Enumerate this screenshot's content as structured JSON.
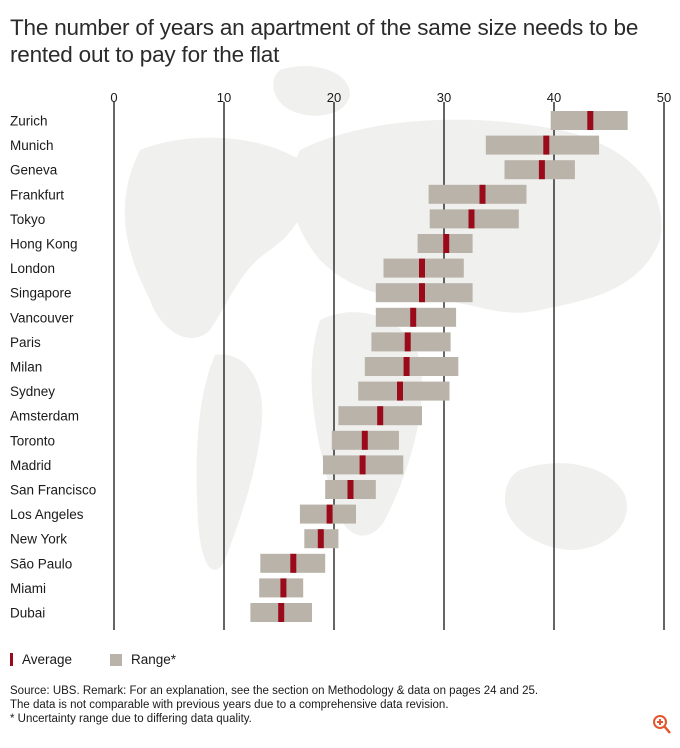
{
  "title": "The number of years an apartment of the same size needs to be rented out to pay for the flat",
  "chart_data": {
    "type": "range-dot",
    "title": "The number of years an apartment of the same size needs to be rented out to pay for the flat",
    "xlim": [
      0,
      50
    ],
    "xticks": [
      0,
      10,
      20,
      30,
      40,
      50
    ],
    "categories": [
      "Zurich",
      "Munich",
      "Geneva",
      "Frankfurt",
      "Tokyo",
      "Hong Kong",
      "London",
      "Singapore",
      "Vancouver",
      "Paris",
      "Milan",
      "Sydney",
      "Amsterdam",
      "Toronto",
      "Madrid",
      "San Francisco",
      "Los Angeles",
      "New York",
      "São Paulo",
      "Miami",
      "Dubai"
    ],
    "series": [
      {
        "name": "Range*",
        "low": [
          39.7,
          33.8,
          35.5,
          28.6,
          28.7,
          27.6,
          24.5,
          23.8,
          23.8,
          23.4,
          22.8,
          22.2,
          20.4,
          19.8,
          19.0,
          19.2,
          16.9,
          17.3,
          13.3,
          13.2,
          12.4
        ],
        "high": [
          46.7,
          44.1,
          41.9,
          37.5,
          36.8,
          32.6,
          31.8,
          32.6,
          31.1,
          30.6,
          31.3,
          30.5,
          28.0,
          25.9,
          26.3,
          23.8,
          22.0,
          20.4,
          19.2,
          17.2,
          18.0
        ]
      },
      {
        "name": "Average",
        "values": [
          43.3,
          39.3,
          38.9,
          33.5,
          32.5,
          30.2,
          28.0,
          28.0,
          27.2,
          26.7,
          26.6,
          26.0,
          24.2,
          22.8,
          22.6,
          21.5,
          19.6,
          18.8,
          16.3,
          15.4,
          15.2
        ]
      }
    ],
    "legend": [
      "Average",
      "Range*"
    ],
    "colors": {
      "range": "#b9b3aa",
      "average": "#9b0a1a",
      "grid": "#000000"
    }
  },
  "source_lines": [
    "Source: UBS. Remark: For an explanation, see the section on Methodology & data on pages 24 and 25.",
    "The data is not comparable with previous years due to a comprehensive data revision.",
    "* Uncertainty range due to differing data quality."
  ]
}
